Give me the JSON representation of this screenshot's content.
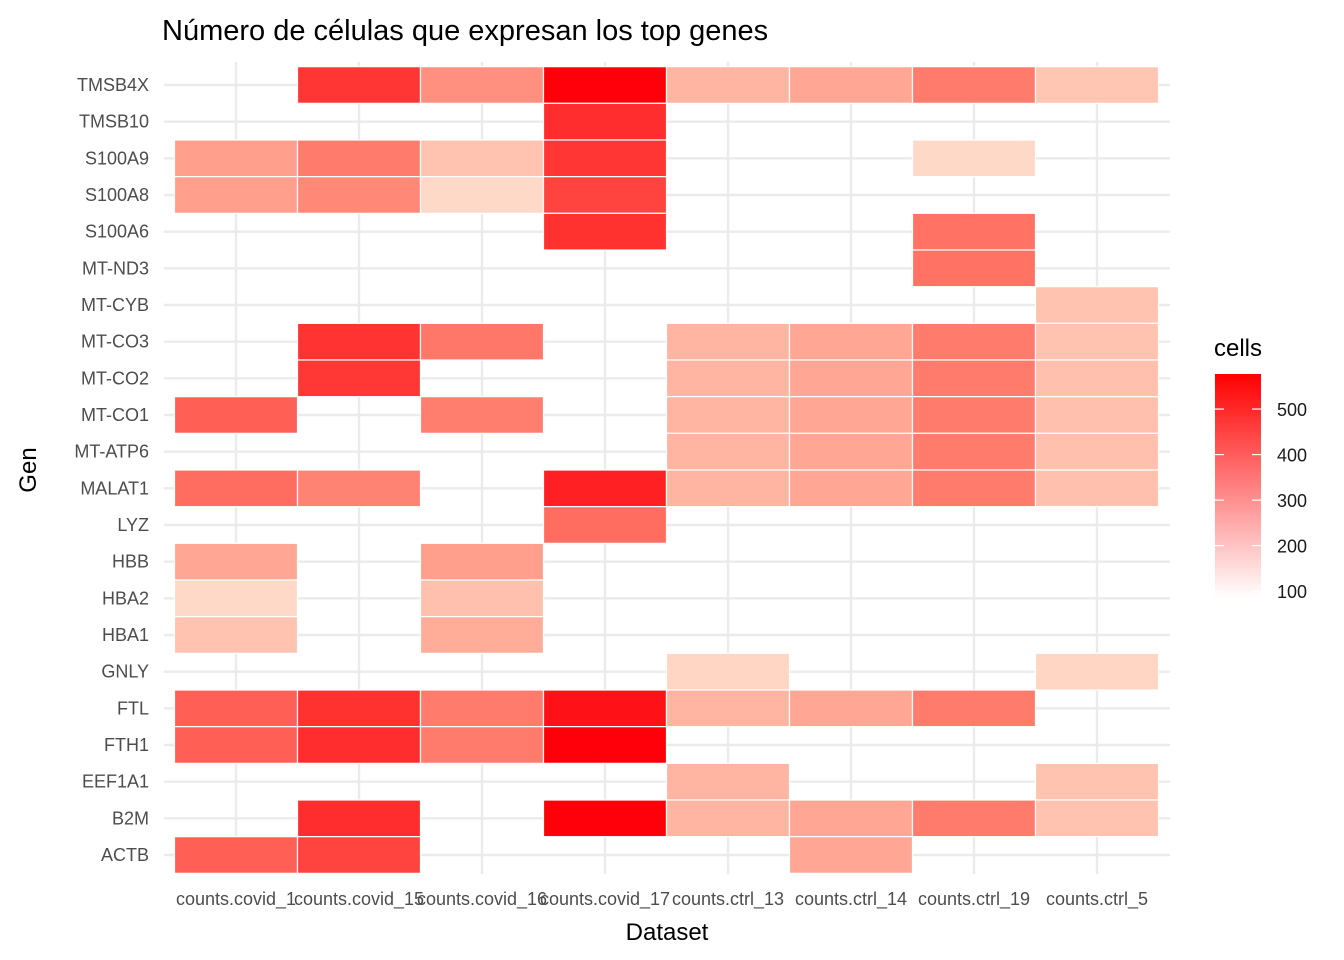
{
  "chart_data": {
    "type": "heatmap",
    "title": "Número de células que expresan los top genes",
    "xlabel": "Dataset",
    "ylabel": "Gen",
    "x_categories": [
      "counts.covid_1",
      "counts.covid_15",
      "counts.covid_16",
      "counts.covid_17",
      "counts.ctrl_13",
      "counts.ctrl_14",
      "counts.ctrl_19",
      "counts.ctrl_5"
    ],
    "y_categories": [
      "TMSB4X",
      "TMSB10",
      "S100A9",
      "S100A8",
      "S100A6",
      "MT-ND3",
      "MT-CYB",
      "MT-CO3",
      "MT-CO2",
      "MT-CO1",
      "MT-ATP6",
      "MALAT1",
      "LYZ",
      "HBB",
      "HBA2",
      "HBA1",
      "GNLY",
      "FTL",
      "FTH1",
      "EEF1A1",
      "B2M",
      "ACTB"
    ],
    "values": [
      [
        null,
        450,
        260,
        580,
        190,
        215,
        300,
        160
      ],
      [
        null,
        null,
        null,
        470,
        null,
        null,
        null,
        null
      ],
      [
        230,
        300,
        165,
        450,
        null,
        null,
        130,
        null
      ],
      [
        230,
        275,
        130,
        420,
        null,
        null,
        null,
        null
      ],
      [
        null,
        null,
        null,
        460,
        null,
        null,
        320,
        null
      ],
      [
        null,
        null,
        null,
        null,
        null,
        null,
        320,
        null
      ],
      [
        null,
        null,
        null,
        null,
        null,
        null,
        null,
        165
      ],
      [
        null,
        455,
        310,
        null,
        190,
        215,
        300,
        165
      ],
      [
        null,
        445,
        null,
        null,
        190,
        215,
        300,
        170
      ],
      [
        360,
        null,
        295,
        null,
        190,
        215,
        300,
        170
      ],
      [
        null,
        null,
        null,
        null,
        190,
        215,
        300,
        170
      ],
      [
        330,
        285,
        null,
        500,
        190,
        215,
        300,
        170
      ],
      [
        null,
        null,
        null,
        330,
        null,
        null,
        null,
        null
      ],
      [
        215,
        null,
        230,
        null,
        null,
        null,
        null,
        null
      ],
      [
        130,
        null,
        170,
        null,
        null,
        null,
        null,
        null
      ],
      [
        165,
        null,
        205,
        null,
        null,
        null,
        null,
        null
      ],
      [
        null,
        null,
        null,
        null,
        135,
        null,
        null,
        135
      ],
      [
        360,
        460,
        300,
        535,
        190,
        215,
        300,
        null
      ],
      [
        360,
        470,
        300,
        580,
        null,
        null,
        null,
        null
      ],
      [
        null,
        null,
        null,
        null,
        190,
        null,
        null,
        165
      ],
      [
        null,
        470,
        null,
        580,
        190,
        215,
        300,
        165
      ],
      [
        360,
        420,
        null,
        null,
        null,
        215,
        null,
        null
      ]
    ],
    "legend": {
      "title": "cells",
      "ticks": [
        100,
        200,
        300,
        400,
        500
      ],
      "range": [
        85,
        577
      ],
      "low_color": "#ffffff",
      "high_color": "#ff0000",
      "placement": "right"
    },
    "grid": true,
    "missing_color": "none"
  }
}
